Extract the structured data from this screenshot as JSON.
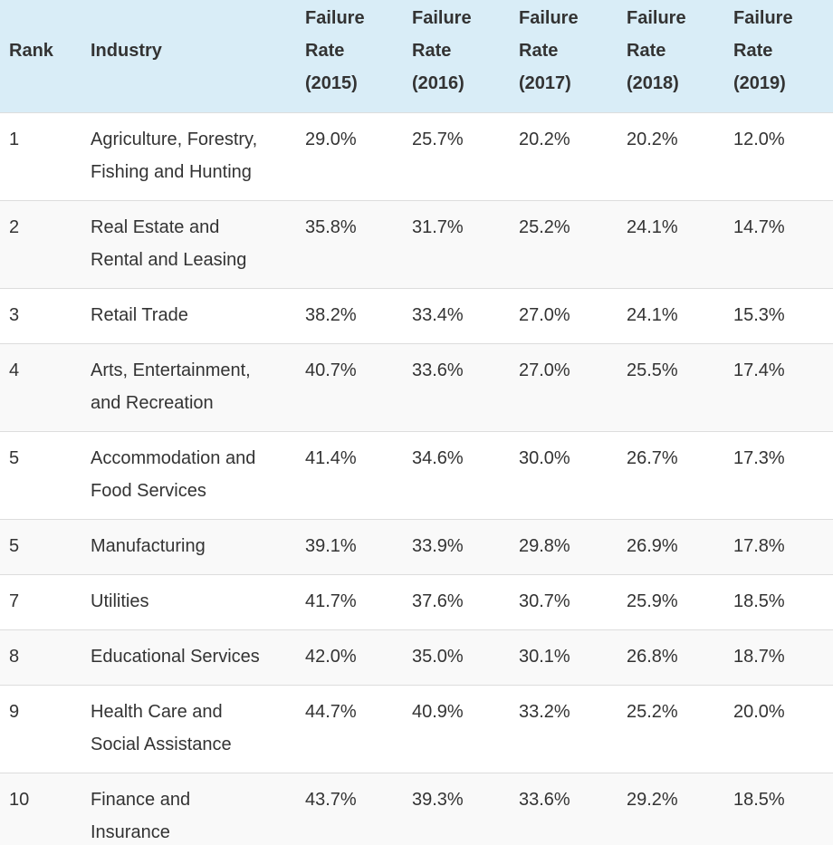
{
  "table": {
    "header": [
      "Rank",
      "Industry",
      "Failure Rate (2015)",
      "Failure Rate (2016)",
      "Failure Rate (2017)",
      "Failure Rate (2018)",
      "Failure Rate (2019)"
    ],
    "rows": [
      [
        "1",
        "Agriculture, Forestry, Fishing and Hunting",
        "29.0%",
        "25.7%",
        "20.2%",
        "20.2%",
        "12.0%"
      ],
      [
        "2",
        "Real Estate and Rental and Leasing",
        "35.8%",
        "31.7%",
        "25.2%",
        "24.1%",
        "14.7%"
      ],
      [
        "3",
        "Retail Trade",
        "38.2%",
        "33.4%",
        "27.0%",
        "24.1%",
        "15.3%"
      ],
      [
        "4",
        "Arts, Entertainment, and Recreation",
        "40.7%",
        "33.6%",
        "27.0%",
        "25.5%",
        "17.4%"
      ],
      [
        "5",
        "Accommodation and Food Services",
        "41.4%",
        "34.6%",
        "30.0%",
        "26.7%",
        "17.3%"
      ],
      [
        "5",
        "Manufacturing",
        "39.1%",
        "33.9%",
        "29.8%",
        "26.9%",
        "17.8%"
      ],
      [
        "7",
        "Utilities",
        "41.7%",
        "37.6%",
        "30.7%",
        "25.9%",
        "18.5%"
      ],
      [
        "8",
        "Educational Services",
        "42.0%",
        "35.0%",
        "30.1%",
        "26.8%",
        "18.7%"
      ],
      [
        "9",
        "Health Care and Social Assistance",
        "44.7%",
        "40.9%",
        "33.2%",
        "25.2%",
        "20.0%"
      ],
      [
        "10",
        "Finance and Insurance",
        "43.7%",
        "39.3%",
        "33.6%",
        "29.2%",
        "18.5%"
      ]
    ]
  }
}
